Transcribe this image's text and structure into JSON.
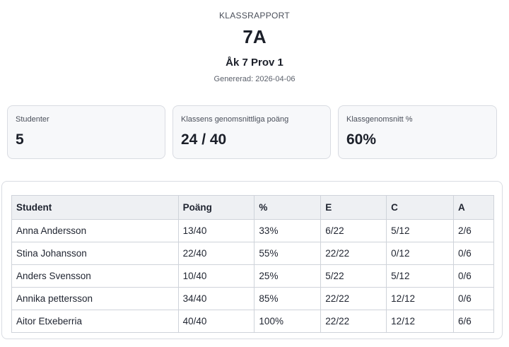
{
  "report": {
    "eyebrow": "KLASSRAPPORT",
    "class_name": "7A",
    "test_name": "Åk 7 Prov 1",
    "generated": "Genererad: 2026-04-06"
  },
  "summary": [
    {
      "label": "Studenter",
      "value": "5"
    },
    {
      "label": "Klassens genomsnittliga poäng",
      "value": "24 / 40"
    },
    {
      "label": "Klassgenomsnitt %",
      "value": "60%"
    }
  ],
  "table": {
    "headers": [
      "Student",
      "Poäng",
      "%",
      "E",
      "C",
      "A"
    ],
    "rows": [
      [
        "Anna Andersson",
        "13/40",
        "33%",
        "6/22",
        "5/12",
        "2/6"
      ],
      [
        "Stina Johansson",
        "22/40",
        "55%",
        "22/22",
        "0/12",
        "0/6"
      ],
      [
        "Anders Svensson",
        "10/40",
        "25%",
        "5/22",
        "5/12",
        "0/6"
      ],
      [
        "Annika pettersson",
        "34/40",
        "85%",
        "22/22",
        "12/12",
        "0/6"
      ],
      [
        "Aitor Etxeberria",
        "40/40",
        "100%",
        "22/22",
        "12/12",
        "6/6"
      ]
    ]
  }
}
